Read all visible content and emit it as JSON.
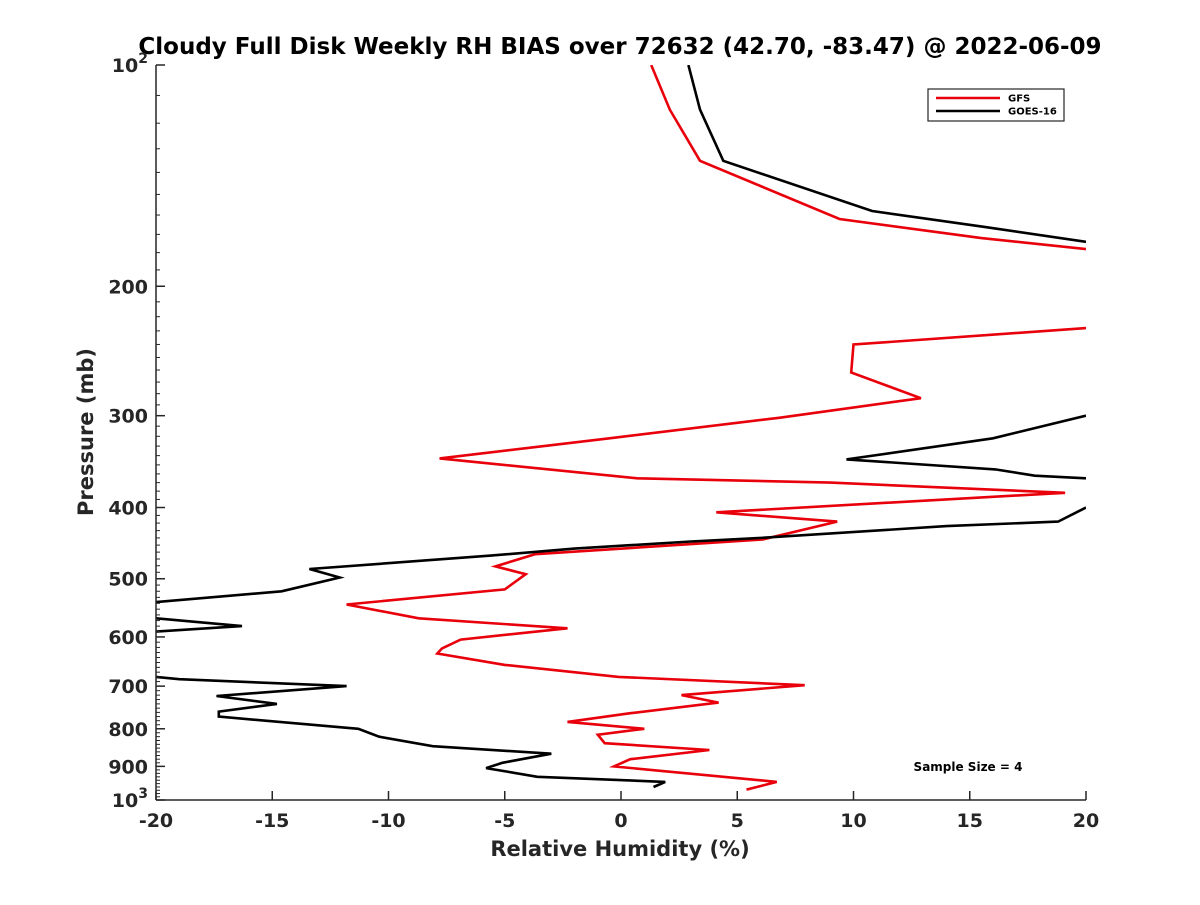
{
  "chart_data": {
    "type": "line",
    "title": "Cloudy Full Disk Weekly RH BIAS over 72632 (42.70, -83.47) @ 2022-06-09",
    "xlabel": "Relative Humidity (%)",
    "ylabel": "Pressure (mb)",
    "xlim": [
      -20,
      20
    ],
    "ylim": [
      100,
      1000
    ],
    "y_scale": "log",
    "y_reversed": true,
    "grid": false,
    "legend_position": "top-right",
    "x_ticks": [
      "-20",
      "-15",
      "-10",
      "-5",
      "0",
      "5",
      "10",
      "15",
      "20"
    ],
    "y_ticks": [
      {
        "base": "10",
        "exp": "2"
      },
      {
        "base": "200",
        "exp": ""
      },
      {
        "base": "300",
        "exp": ""
      },
      {
        "base": "400",
        "exp": ""
      },
      {
        "base": "500",
        "exp": ""
      },
      {
        "base": "600",
        "exp": ""
      },
      {
        "base": "700",
        "exp": ""
      },
      {
        "base": "800",
        "exp": ""
      },
      {
        "base": "900",
        "exp": ""
      },
      {
        "base": "10",
        "exp": "3"
      }
    ],
    "annotation": "Sample Size = 4",
    "series": [
      {
        "name": "GFS",
        "color": "#e8000b",
        "points": [
          [
            1.3,
            100
          ],
          [
            2.1,
            115
          ],
          [
            3.4,
            135
          ],
          [
            9.4,
            162
          ],
          [
            15.5,
            172
          ],
          [
            20.0,
            178
          ],
          [
            null,
            null
          ],
          [
            20.0,
            228
          ],
          [
            10.0,
            240
          ],
          [
            9.9,
            262
          ],
          [
            12.9,
            284
          ],
          [
            6.8,
            302
          ],
          [
            -0.5,
            322
          ],
          [
            -7.8,
            343
          ],
          [
            0.7,
            365
          ],
          [
            9.0,
            370
          ],
          [
            19.1,
            382
          ],
          [
            4.1,
            406
          ],
          [
            9.3,
            418
          ],
          [
            6.1,
            442
          ],
          [
            -3.7,
            463
          ],
          [
            -5.4,
            481
          ],
          [
            -4.1,
            493
          ],
          [
            -5.0,
            517
          ],
          [
            -11.8,
            542
          ],
          [
            -8.7,
            566
          ],
          [
            -2.3,
            584
          ],
          [
            -6.9,
            605
          ],
          [
            -7.7,
            622
          ],
          [
            -7.9,
            632
          ],
          [
            -5.0,
            655
          ],
          [
            -0.1,
            680
          ],
          [
            7.9,
            698
          ],
          [
            2.6,
            720
          ],
          [
            4.2,
            737
          ],
          [
            0.4,
            762
          ],
          [
            -2.3,
            783
          ],
          [
            1.0,
            800
          ],
          [
            -1.0,
            815
          ],
          [
            -0.7,
            837
          ],
          [
            3.8,
            855
          ],
          [
            0.4,
            880
          ],
          [
            -0.3,
            900
          ],
          [
            6.7,
            945
          ],
          [
            5.4,
            968
          ]
        ]
      },
      {
        "name": "GOES-16",
        "color": "#000000",
        "points": [
          [
            2.9,
            100
          ],
          [
            3.4,
            115
          ],
          [
            4.4,
            135
          ],
          [
            10.8,
            158
          ],
          [
            15.6,
            166
          ],
          [
            20.0,
            174
          ],
          [
            null,
            null
          ],
          [
            20.0,
            300
          ],
          [
            16.0,
            322
          ],
          [
            9.7,
            344
          ],
          [
            16.1,
            355
          ],
          [
            17.8,
            362
          ],
          [
            20.0,
            365
          ],
          [
            null,
            null
          ],
          [
            20.0,
            400
          ],
          [
            18.8,
            418
          ],
          [
            14.0,
            424
          ],
          [
            6.0,
            440
          ],
          [
            3.0,
            445
          ],
          [
            -2.0,
            455
          ],
          [
            -5.6,
            465
          ],
          [
            -13.4,
            485
          ],
          [
            -12.1,
            498
          ],
          [
            -14.6,
            520
          ],
          [
            -20.0,
            538
          ],
          [
            null,
            null
          ],
          [
            -20.0,
            566
          ],
          [
            -16.3,
            580
          ],
          [
            -20.0,
            590
          ],
          [
            null,
            null
          ],
          [
            -20.0,
            680
          ],
          [
            -19.0,
            685
          ],
          [
            -11.8,
            700
          ],
          [
            -17.4,
            722
          ],
          [
            -14.8,
            740
          ],
          [
            -17.3,
            758
          ],
          [
            -17.3,
            770
          ],
          [
            -11.3,
            800
          ],
          [
            -10.4,
            820
          ],
          [
            -8.1,
            845
          ],
          [
            -3.0,
            865
          ],
          [
            -5.1,
            890
          ],
          [
            -5.8,
            905
          ],
          [
            -3.6,
            930
          ],
          [
            1.9,
            945
          ],
          [
            1.4,
            960
          ]
        ]
      }
    ]
  }
}
